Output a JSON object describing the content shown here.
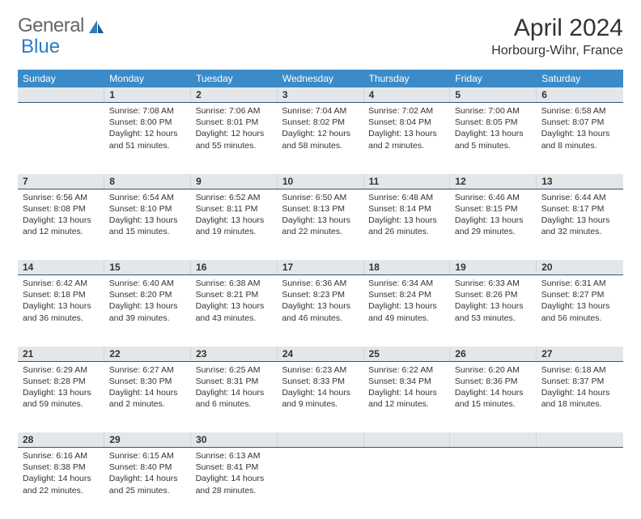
{
  "logo": {
    "text1": "General",
    "text2": "Blue"
  },
  "title": "April 2024",
  "location": "Horbourg-Wihr, France",
  "colors": {
    "header_bg": "#3b8bc9",
    "header_text": "#ffffff",
    "daybar_bg": "#e3e7ea",
    "daybar_border": "#30557a",
    "text": "#333333",
    "logo_blue": "#2b7cc0"
  },
  "fonts": {
    "title_pt": 30,
    "location_pt": 16,
    "th_pt": 12,
    "cell_pt": 10.5
  },
  "weekdays": [
    "Sunday",
    "Monday",
    "Tuesday",
    "Wednesday",
    "Thursday",
    "Friday",
    "Saturday"
  ],
  "weeks": [
    [
      null,
      {
        "n": "1",
        "sr": "Sunrise: 7:08 AM",
        "ss": "Sunset: 8:00 PM",
        "dl": "Daylight: 12 hours and 51 minutes."
      },
      {
        "n": "2",
        "sr": "Sunrise: 7:06 AM",
        "ss": "Sunset: 8:01 PM",
        "dl": "Daylight: 12 hours and 55 minutes."
      },
      {
        "n": "3",
        "sr": "Sunrise: 7:04 AM",
        "ss": "Sunset: 8:02 PM",
        "dl": "Daylight: 12 hours and 58 minutes."
      },
      {
        "n": "4",
        "sr": "Sunrise: 7:02 AM",
        "ss": "Sunset: 8:04 PM",
        "dl": "Daylight: 13 hours and 2 minutes."
      },
      {
        "n": "5",
        "sr": "Sunrise: 7:00 AM",
        "ss": "Sunset: 8:05 PM",
        "dl": "Daylight: 13 hours and 5 minutes."
      },
      {
        "n": "6",
        "sr": "Sunrise: 6:58 AM",
        "ss": "Sunset: 8:07 PM",
        "dl": "Daylight: 13 hours and 8 minutes."
      }
    ],
    [
      {
        "n": "7",
        "sr": "Sunrise: 6:56 AM",
        "ss": "Sunset: 8:08 PM",
        "dl": "Daylight: 13 hours and 12 minutes."
      },
      {
        "n": "8",
        "sr": "Sunrise: 6:54 AM",
        "ss": "Sunset: 8:10 PM",
        "dl": "Daylight: 13 hours and 15 minutes."
      },
      {
        "n": "9",
        "sr": "Sunrise: 6:52 AM",
        "ss": "Sunset: 8:11 PM",
        "dl": "Daylight: 13 hours and 19 minutes."
      },
      {
        "n": "10",
        "sr": "Sunrise: 6:50 AM",
        "ss": "Sunset: 8:13 PM",
        "dl": "Daylight: 13 hours and 22 minutes."
      },
      {
        "n": "11",
        "sr": "Sunrise: 6:48 AM",
        "ss": "Sunset: 8:14 PM",
        "dl": "Daylight: 13 hours and 26 minutes."
      },
      {
        "n": "12",
        "sr": "Sunrise: 6:46 AM",
        "ss": "Sunset: 8:15 PM",
        "dl": "Daylight: 13 hours and 29 minutes."
      },
      {
        "n": "13",
        "sr": "Sunrise: 6:44 AM",
        "ss": "Sunset: 8:17 PM",
        "dl": "Daylight: 13 hours and 32 minutes."
      }
    ],
    [
      {
        "n": "14",
        "sr": "Sunrise: 6:42 AM",
        "ss": "Sunset: 8:18 PM",
        "dl": "Daylight: 13 hours and 36 minutes."
      },
      {
        "n": "15",
        "sr": "Sunrise: 6:40 AM",
        "ss": "Sunset: 8:20 PM",
        "dl": "Daylight: 13 hours and 39 minutes."
      },
      {
        "n": "16",
        "sr": "Sunrise: 6:38 AM",
        "ss": "Sunset: 8:21 PM",
        "dl": "Daylight: 13 hours and 43 minutes."
      },
      {
        "n": "17",
        "sr": "Sunrise: 6:36 AM",
        "ss": "Sunset: 8:23 PM",
        "dl": "Daylight: 13 hours and 46 minutes."
      },
      {
        "n": "18",
        "sr": "Sunrise: 6:34 AM",
        "ss": "Sunset: 8:24 PM",
        "dl": "Daylight: 13 hours and 49 minutes."
      },
      {
        "n": "19",
        "sr": "Sunrise: 6:33 AM",
        "ss": "Sunset: 8:26 PM",
        "dl": "Daylight: 13 hours and 53 minutes."
      },
      {
        "n": "20",
        "sr": "Sunrise: 6:31 AM",
        "ss": "Sunset: 8:27 PM",
        "dl": "Daylight: 13 hours and 56 minutes."
      }
    ],
    [
      {
        "n": "21",
        "sr": "Sunrise: 6:29 AM",
        "ss": "Sunset: 8:28 PM",
        "dl": "Daylight: 13 hours and 59 minutes."
      },
      {
        "n": "22",
        "sr": "Sunrise: 6:27 AM",
        "ss": "Sunset: 8:30 PM",
        "dl": "Daylight: 14 hours and 2 minutes."
      },
      {
        "n": "23",
        "sr": "Sunrise: 6:25 AM",
        "ss": "Sunset: 8:31 PM",
        "dl": "Daylight: 14 hours and 6 minutes."
      },
      {
        "n": "24",
        "sr": "Sunrise: 6:23 AM",
        "ss": "Sunset: 8:33 PM",
        "dl": "Daylight: 14 hours and 9 minutes."
      },
      {
        "n": "25",
        "sr": "Sunrise: 6:22 AM",
        "ss": "Sunset: 8:34 PM",
        "dl": "Daylight: 14 hours and 12 minutes."
      },
      {
        "n": "26",
        "sr": "Sunrise: 6:20 AM",
        "ss": "Sunset: 8:36 PM",
        "dl": "Daylight: 14 hours and 15 minutes."
      },
      {
        "n": "27",
        "sr": "Sunrise: 6:18 AM",
        "ss": "Sunset: 8:37 PM",
        "dl": "Daylight: 14 hours and 18 minutes."
      }
    ],
    [
      {
        "n": "28",
        "sr": "Sunrise: 6:16 AM",
        "ss": "Sunset: 8:38 PM",
        "dl": "Daylight: 14 hours and 22 minutes."
      },
      {
        "n": "29",
        "sr": "Sunrise: 6:15 AM",
        "ss": "Sunset: 8:40 PM",
        "dl": "Daylight: 14 hours and 25 minutes."
      },
      {
        "n": "30",
        "sr": "Sunrise: 6:13 AM",
        "ss": "Sunset: 8:41 PM",
        "dl": "Daylight: 14 hours and 28 minutes."
      },
      null,
      null,
      null,
      null
    ]
  ]
}
